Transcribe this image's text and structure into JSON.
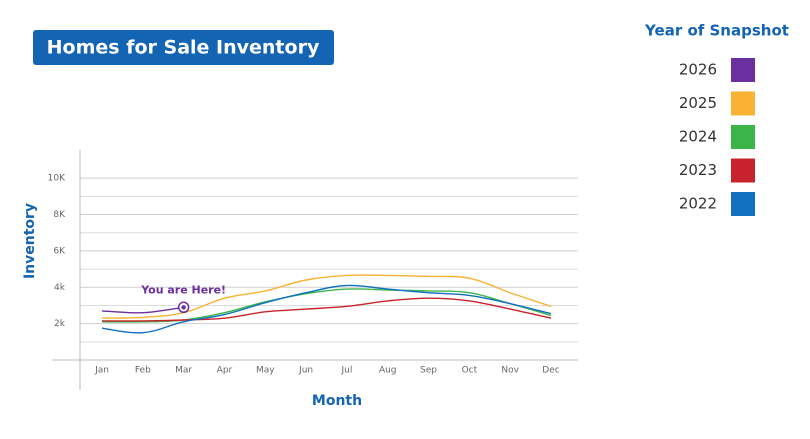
{
  "chart_data": {
    "type": "line",
    "title": "Homes for Sale Inventory",
    "x_label": "Month",
    "y_label": "Inventory",
    "legend_title": "Year of Snapshot",
    "annotation": "You are Here!",
    "categories": [
      "Jan",
      "Feb",
      "Mar",
      "Apr",
      "May",
      "Jun",
      "Jul",
      "Aug",
      "Sep",
      "Oct",
      "Nov",
      "Dec"
    ],
    "ylim": [
      0,
      11000
    ],
    "yticks": [
      {
        "value": 2000,
        "label": "2k"
      },
      {
        "value": 4000,
        "label": "4k"
      },
      {
        "value": 6000,
        "label": "6K"
      },
      {
        "value": 8000,
        "label": "8K"
      },
      {
        "value": 10000,
        "label": "10K"
      }
    ],
    "minor_yticks": [
      1000,
      3000,
      5000,
      7000,
      9000
    ],
    "grid": true,
    "legend_position": "right",
    "series": [
      {
        "name": "2026",
        "color": "#6b2fa0",
        "values": [
          2700,
          2600,
          2900,
          null,
          null,
          null,
          null,
          null,
          null,
          null,
          null,
          null
        ]
      },
      {
        "name": "2025",
        "color": "#f9b233",
        "values": [
          2300,
          2350,
          2600,
          3400,
          3800,
          4400,
          4650,
          4650,
          4600,
          4500,
          3700,
          2950
        ]
      },
      {
        "name": "2024",
        "color": "#3bb54a",
        "values": [
          2100,
          2100,
          2200,
          2600,
          3200,
          3650,
          3900,
          3850,
          3800,
          3700,
          3100,
          2450
        ]
      },
      {
        "name": "2023",
        "color": "#c8232c",
        "values": [
          2150,
          2150,
          2200,
          2300,
          2650,
          2800,
          2950,
          3250,
          3400,
          3250,
          2800,
          2300
        ]
      },
      {
        "name": "2022",
        "color": "#1270c0",
        "values": [
          1750,
          1500,
          2100,
          2500,
          3150,
          3700,
          4100,
          3900,
          3700,
          3550,
          3100,
          2550
        ]
      }
    ]
  }
}
